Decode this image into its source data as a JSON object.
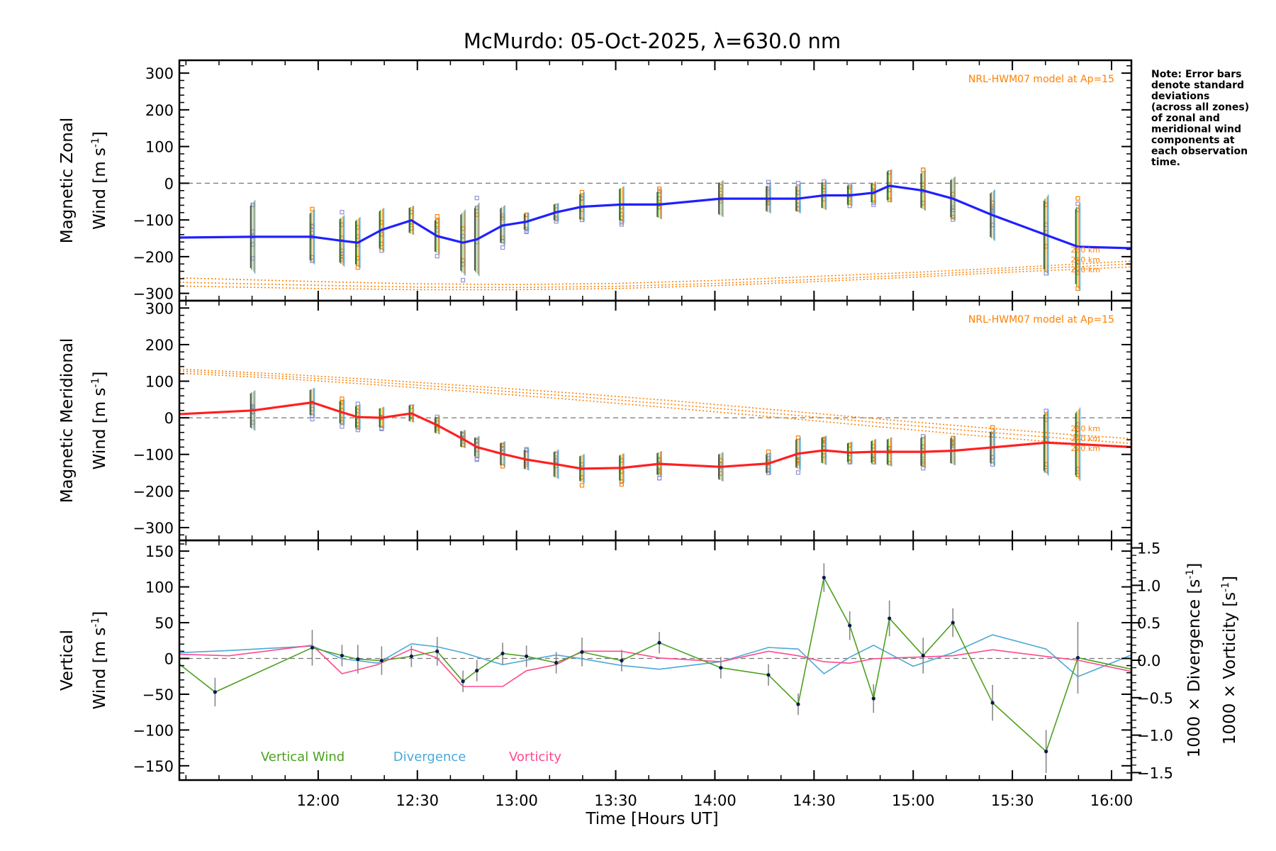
{
  "chart_data": {
    "type": "line",
    "title": "McMurdo: 05-Oct-2025, λ=630.0 nm",
    "xlabel": "Time [Hours UT]",
    "xlim": [
      11.3,
      16.1
    ],
    "xticks": [
      12.0,
      12.5,
      13.0,
      13.5,
      14.0,
      14.5,
      15.0,
      15.5,
      16.0
    ],
    "xtick_labels": [
      "12:00",
      "12:30",
      "13:00",
      "13:30",
      "14:00",
      "14:30",
      "15:00",
      "15:30",
      "16:00"
    ],
    "note_lines": [
      "Note: Error bars",
      "denote standard",
      "deviations",
      "(across all zones)",
      "of zonal and",
      "meridional wind",
      "components at",
      "each observation",
      "time."
    ],
    "colors": {
      "zonal": "#2020ff",
      "meridional": "#ff2020",
      "vertical": "#4ca020",
      "divergence": "#4ca8d8",
      "vorticity": "#ff4a8c",
      "model": "#ff8000",
      "scatter": "#9090d8",
      "errbar": "#303030"
    },
    "panels": {
      "zonal": {
        "ylabel_line1": "Magnetic Zonal",
        "ylabel_line2": "Wind [m s",
        "ylabel_sup": "-1",
        "ylabel_end": "]",
        "ylim": [
          -320,
          335
        ],
        "yticks": [
          -300,
          -200,
          -100,
          0,
          100,
          200,
          300
        ],
        "ytick_labels": [
          "−300",
          "−200",
          "−100",
          "0",
          "100",
          "200",
          "300"
        ],
        "model_note": "NRL-HWM07 model at Ap=15",
        "alt_labels": [
          "260 km",
          "240 km",
          "220 km"
        ],
        "model_curves": [
          {
            "x": [
              11.3,
              12.0,
              12.5,
              13.0,
              13.5,
              14.0,
              14.5,
              15.0,
              15.5,
              16.1
            ],
            "values": [
              -258,
              -268,
              -274,
              -276,
              -273,
              -265,
              -254,
              -243,
              -230,
              -212
            ]
          },
          {
            "x": [
              11.3,
              12.0,
              12.5,
              13.0,
              13.5,
              14.0,
              14.5,
              15.0,
              15.5,
              16.1
            ],
            "values": [
              -270,
              -278,
              -283,
              -284,
              -281,
              -273,
              -262,
              -250,
              -236,
              -220
            ]
          },
          {
            "x": [
              11.3,
              12.0,
              12.5,
              13.0,
              13.5,
              14.0,
              14.5,
              15.0,
              15.5,
              16.1
            ],
            "values": [
              -280,
              -287,
              -290,
              -290,
              -287,
              -279,
              -268,
              -256,
              -242,
              -228
            ]
          }
        ],
        "series": {
          "name": "Zonal Wind",
          "x": [
            11.3,
            11.67,
            11.97,
            12.12,
            12.2,
            12.32,
            12.47,
            12.6,
            12.73,
            12.8,
            12.93,
            13.05,
            13.2,
            13.33,
            13.53,
            13.72,
            14.03,
            14.27,
            14.42,
            14.55,
            14.68,
            14.8,
            14.88,
            15.05,
            15.2,
            15.4,
            15.67,
            15.83,
            16.1
          ],
          "values": [
            -148,
            -146,
            -146,
            -157,
            -162,
            -127,
            -101,
            -144,
            -162,
            -153,
            -115,
            -105,
            -79,
            -64,
            -58,
            -58,
            -42,
            -42,
            -42,
            -33,
            -33,
            -26,
            -7,
            -20,
            -42,
            -87,
            -141,
            -173,
            -177
          ],
          "err": [
            0,
            100,
            75,
            70,
            70,
            60,
            40,
            50,
            90,
            100,
            55,
            25,
            25,
            40,
            50,
            40,
            50,
            40,
            40,
            40,
            30,
            30,
            45,
            55,
            60,
            70,
            110,
            120,
            0
          ]
        }
      },
      "meridional": {
        "ylabel_line1": "Magnetic Meridional",
        "ylabel_line2": "Wind [m s",
        "ylabel_sup": "-1",
        "ylabel_end": "]",
        "ylim": [
          -335,
          320
        ],
        "yticks": [
          -300,
          -200,
          -100,
          0,
          100,
          200,
          300
        ],
        "ytick_labels": [
          "−300",
          "−200",
          "−100",
          "0",
          "100",
          "200",
          "300"
        ],
        "model_note": "NRL-HWM07 model at Ap=15",
        "alt_labels": [
          "260 km",
          "240 km",
          "220 km"
        ],
        "model_curves": [
          {
            "x": [
              11.3,
              11.8,
              12.3,
              12.8,
              13.3,
              13.8,
              14.3,
              14.8,
              15.3,
              15.8,
              16.1
            ],
            "values": [
              133,
              120,
              104,
              86,
              67,
              46,
              22,
              -2,
              -25,
              -46,
              -57
            ]
          },
          {
            "x": [
              11.3,
              11.8,
              12.3,
              12.8,
              13.3,
              13.8,
              14.3,
              14.8,
              15.3,
              15.8,
              16.1
            ],
            "values": [
              128,
              114,
              97,
              78,
              58,
              36,
              12,
              -12,
              -36,
              -58,
              -70
            ]
          },
          {
            "x": [
              11.3,
              11.8,
              12.3,
              12.8,
              13.3,
              13.8,
              14.3,
              14.8,
              15.3,
              15.8,
              16.1
            ],
            "values": [
              122,
              108,
              90,
              70,
              49,
              26,
              2,
              -23,
              -48,
              -70,
              -82
            ]
          }
        ],
        "series": {
          "name": "Meridional Wind",
          "x": [
            11.3,
            11.67,
            11.97,
            12.12,
            12.2,
            12.32,
            12.47,
            12.6,
            12.73,
            12.8,
            12.93,
            13.05,
            13.2,
            13.33,
            13.53,
            13.72,
            14.03,
            14.27,
            14.42,
            14.55,
            14.68,
            14.8,
            14.88,
            15.05,
            15.2,
            15.4,
            15.67,
            15.83,
            16.1
          ],
          "values": [
            10,
            20,
            42,
            15,
            2,
            0,
            12,
            -20,
            -58,
            -80,
            -99,
            -114,
            -127,
            -139,
            -137,
            -126,
            -134,
            -125,
            -98,
            -89,
            -95,
            -93,
            -93,
            -93,
            -90,
            -81,
            -68,
            -72,
            -80
          ],
          "err": [
            0,
            55,
            40,
            35,
            35,
            30,
            25,
            25,
            25,
            30,
            35,
            30,
            40,
            40,
            40,
            35,
            40,
            30,
            45,
            40,
            30,
            35,
            40,
            45,
            40,
            50,
            90,
            100,
            0
          ]
        }
      },
      "vertical": {
        "ylabel_line1": "Vertical",
        "ylabel_line2": "Wind [m s",
        "ylabel_sup": "-1",
        "ylabel_end": "]",
        "ylim": [
          -170,
          165
        ],
        "yticks": [
          -150,
          -100,
          -50,
          0,
          50,
          100,
          150
        ],
        "ytick_labels": [
          "−150",
          "−100",
          "−50",
          "0",
          "50",
          "100",
          "150"
        ],
        "right_ylim": [
          -1.6,
          1.6
        ],
        "right_yticks": [
          -1.5,
          -1.0,
          -0.5,
          0.0,
          0.5,
          1.0,
          1.5
        ],
        "right_ytick_labels": [
          "−1.5",
          "−1.0",
          "−0.5",
          "0.0",
          "0.5",
          "1.0",
          "1.5"
        ],
        "right_label_div": "1000 × Divergence [s",
        "right_label_vort": "1000 × Vorticity [s",
        "right_label_sup": "-1",
        "right_label_end": "]",
        "legend": [
          "Vertical Wind",
          "Divergence",
          "Vorticity"
        ],
        "vertical_wind": {
          "x": [
            11.3,
            11.48,
            11.97,
            12.12,
            12.2,
            12.32,
            12.47,
            12.6,
            12.73,
            12.8,
            12.93,
            13.05,
            13.2,
            13.33,
            13.53,
            13.72,
            14.03,
            14.27,
            14.42,
            14.55,
            14.68,
            14.8,
            14.88,
            15.05,
            15.2,
            15.4,
            15.67,
            15.83,
            16.1
          ],
          "values": [
            -8,
            -47,
            15,
            4,
            -1,
            -3,
            3,
            10,
            -32,
            -17,
            7,
            3,
            -6,
            9,
            -3,
            22,
            -13,
            -23,
            -64,
            113,
            46,
            -56,
            56,
            4,
            50,
            -62,
            -130,
            1,
            -15
          ],
          "err": [
            0,
            20,
            25,
            15,
            20,
            20,
            15,
            20,
            15,
            15,
            15,
            15,
            15,
            20,
            15,
            15,
            15,
            15,
            15,
            20,
            20,
            20,
            25,
            25,
            20,
            25,
            30,
            50,
            0
          ]
        },
        "divergence": {
          "x": [
            11.3,
            11.55,
            11.97,
            12.12,
            12.3,
            12.47,
            12.6,
            12.73,
            12.93,
            13.05,
            13.2,
            13.33,
            13.53,
            13.72,
            14.03,
            14.27,
            14.42,
            14.55,
            14.68,
            14.8,
            15.0,
            15.2,
            15.4,
            15.67,
            15.83,
            16.1
          ],
          "values": [
            0.1,
            0.13,
            0.19,
            0.02,
            -0.04,
            0.22,
            0.18,
            0.1,
            -0.06,
            0.0,
            0.07,
            0.02,
            -0.07,
            -0.12,
            -0.02,
            0.17,
            0.15,
            -0.18,
            0.04,
            0.2,
            -0.08,
            0.1,
            0.34,
            0.15,
            -0.22,
            0.07
          ]
        },
        "vorticity": {
          "x": [
            11.3,
            11.55,
            11.97,
            12.12,
            12.3,
            12.47,
            12.6,
            12.73,
            12.93,
            13.05,
            13.2,
            13.33,
            13.53,
            13.72,
            14.03,
            14.27,
            14.42,
            14.55,
            14.68,
            14.8,
            15.0,
            15.2,
            15.4,
            15.67,
            15.83,
            16.1
          ],
          "values": [
            0.08,
            0.06,
            0.2,
            -0.18,
            -0.06,
            0.15,
            0.03,
            -0.35,
            -0.35,
            -0.14,
            -0.06,
            0.12,
            0.12,
            0.03,
            -0.02,
            0.12,
            0.06,
            -0.02,
            -0.04,
            0.02,
            0.04,
            0.06,
            0.14,
            0.05,
            0.0,
            -0.15
          ]
        }
      }
    }
  }
}
